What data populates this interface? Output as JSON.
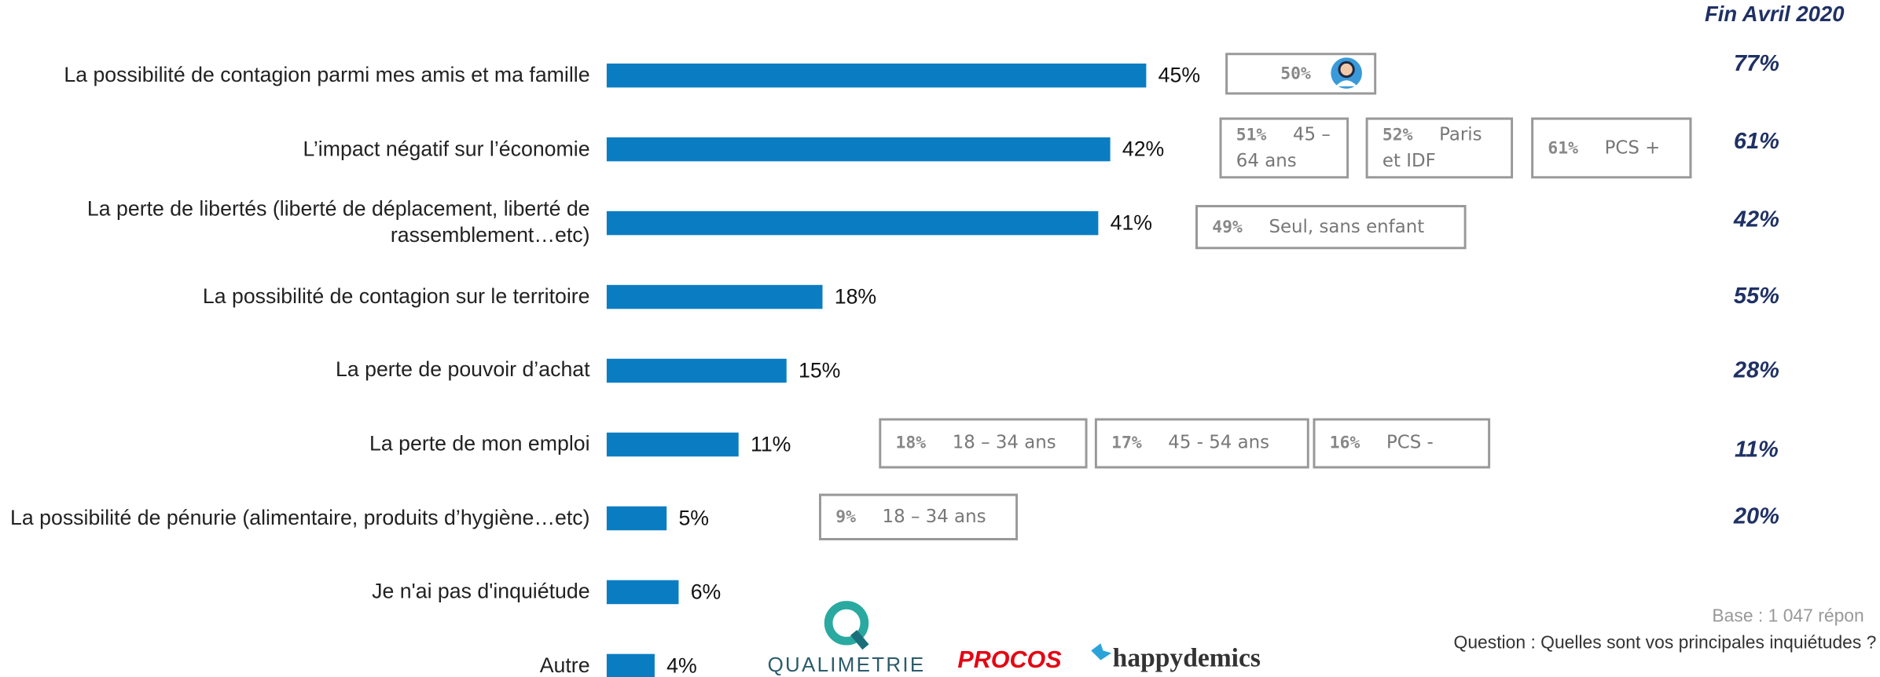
{
  "chart_data": {
    "type": "bar",
    "orientation": "horizontal",
    "categories": [
      "La possibilité de contagion parmi mes amis et ma famille",
      "L’impact négatif sur l’économie",
      "La perte de libertés (liberté de déplacement, liberté de rassemblement…etc)",
      "La possibilité de contagion sur le territoire",
      "La perte de pouvoir d’achat",
      "La perte de mon emploi",
      "La possibilité de pénurie (alimentaire, produits d’hygiène…etc)",
      "Je n'ai pas d'inquiétude",
      "Autre"
    ],
    "values": [
      45,
      42,
      41,
      18,
      15,
      11,
      5,
      6,
      4
    ],
    "value_labels": [
      "45%",
      "42%",
      "41%",
      "18%",
      "15%",
      "11%",
      "5%",
      "6%",
      "4%"
    ],
    "color": "#0a7dc2",
    "comparison": {
      "title": "Fin Avril 2020",
      "color": "#1f3164",
      "values": [
        77,
        61,
        42,
        55,
        28,
        11,
        20
      ],
      "value_labels": [
        "77%",
        "61%",
        "42%",
        "55%",
        "28%",
        "11%",
        "20%"
      ]
    },
    "callouts": [
      [
        {
          "value": 50,
          "value_label": "50%"
        }
      ],
      [
        {
          "value": 51,
          "value_label": "51%",
          "label": "45 – 64 ans"
        },
        {
          "value": 52,
          "value_label": "52%",
          "label": "Paris et IDF"
        },
        {
          "value": 61,
          "value_label": "61%",
          "label": "PCS +"
        }
      ],
      [
        {
          "value": 49,
          "value_label": "49%",
          "label": "Seul, sans enfant"
        }
      ],
      [],
      [],
      [
        {
          "value": 18,
          "value_label": "18%",
          "label": "18 – 34 ans"
        },
        {
          "value": 17,
          "value_label": "17%",
          "label": "45 - 54 ans"
        },
        {
          "value": 16,
          "value_label": "16%",
          "label": "PCS -"
        }
      ],
      [
        {
          "value": 9,
          "value_label": "9%",
          "label": "18 – 34 ans"
        }
      ],
      [],
      []
    ],
    "base_note": "Base : 1 047 répon",
    "question": "Question : Quelles sont vos principales inquiétudes ?",
    "logos": [
      "QUALIMETRIE",
      "PROCOS",
      "happydemics"
    ]
  }
}
